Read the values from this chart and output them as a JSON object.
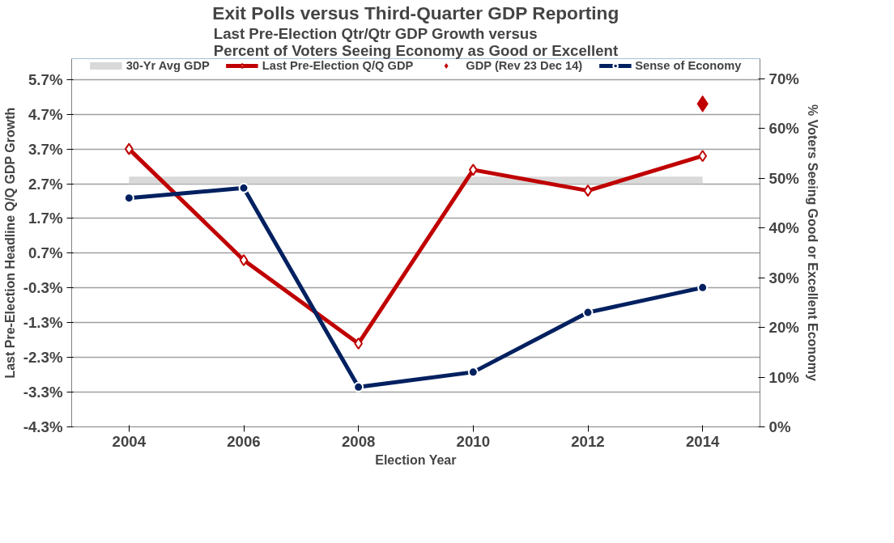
{
  "chart_data": {
    "type": "line",
    "title": "Exit Polls versus Third-Quarter GDP Reporting",
    "subtitle": "Last Pre-Election Qtr/Qtr GDP Growth versus\nPercent of Voters Seeing Economy as Good or Excellent",
    "xlabel": "Election Year",
    "ylabel": "Last Pre-Election Headline Q/Q GDP Growth",
    "y2label": "% Voters Seeing Good or Excellent Economy",
    "categories": [
      "2004",
      "2006",
      "2008",
      "2010",
      "2012",
      "2014"
    ],
    "series": [
      {
        "name": "30-Yr Avg GDP",
        "marker": "none",
        "color": "#d9d9d9",
        "values": [
          2.8,
          2.8,
          2.8,
          2.8,
          2.8,
          2.8
        ]
      },
      {
        "name": "Last Pre-Election Q/Q GDP",
        "marker": "diamond",
        "color": "#c00000",
        "values": [
          3.7,
          0.5,
          -1.9,
          3.1,
          2.5,
          3.5
        ]
      },
      {
        "name": "GDP (Rev 23 Dec 14)",
        "type": "scatter",
        "marker": "diamond",
        "color": "#c00000",
        "values": [
          null,
          null,
          null,
          null,
          null,
          5.0
        ]
      },
      {
        "name": "Sense of Economy",
        "marker": "circle",
        "color": "#002060",
        "axis": "y2",
        "values": [
          46,
          48,
          8,
          11,
          23,
          28
        ]
      }
    ],
    "ylim": [
      -4.3,
      6.3
    ],
    "yticks": [
      {
        "value": -4.3,
        "label": "-4.3%"
      },
      {
        "value": -3.3,
        "label": "-3.3%"
      },
      {
        "value": -2.3,
        "label": "-2.3%"
      },
      {
        "value": -1.3,
        "label": "-1.3%"
      },
      {
        "value": -0.3,
        "label": "-0.3%"
      },
      {
        "value": 0.7,
        "label": "0.7%"
      },
      {
        "value": 1.7,
        "label": "1.7%"
      },
      {
        "value": 2.7,
        "label": "2.7%"
      },
      {
        "value": 3.7,
        "label": "3.7%"
      },
      {
        "value": 4.7,
        "label": "4.7%"
      },
      {
        "value": 5.7,
        "label": "5.7%"
      }
    ],
    "y2lim": [
      0,
      74
    ],
    "y2ticks": [
      {
        "value": 0,
        "label": "0%"
      },
      {
        "value": 10,
        "label": "10%"
      },
      {
        "value": 20,
        "label": "20%"
      },
      {
        "value": 30,
        "label": "30%"
      },
      {
        "value": 40,
        "label": "40%"
      },
      {
        "value": 50,
        "label": "50%"
      },
      {
        "value": 60,
        "label": "60%"
      },
      {
        "value": 70,
        "label": "70%"
      }
    ],
    "grid": "y",
    "legend": "top"
  }
}
